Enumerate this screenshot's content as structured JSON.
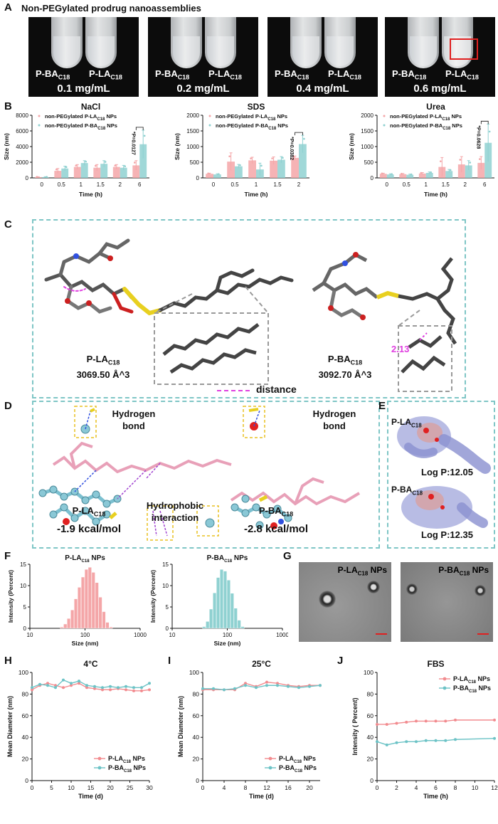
{
  "panels": {
    "A": {
      "letter": "A",
      "title": "Non-PEGylated prodrug nanoassemblies",
      "photos": [
        {
          "left_label": "P-BA",
          "right_label": "P-LA",
          "sub": "C18",
          "conc": "0.1 mg/mL"
        },
        {
          "left_label": "P-BA",
          "right_label": "P-LA",
          "sub": "C18",
          "conc": "0.2 mg/mL"
        },
        {
          "left_label": "P-BA",
          "right_label": "P-LA",
          "sub": "C18",
          "conc": "0.4 mg/mL"
        },
        {
          "left_label": "P-BA",
          "right_label": "P-LA",
          "sub": "C18",
          "conc": "0.6 mg/mL"
        }
      ]
    },
    "B": {
      "letter": "B"
    },
    "C": {
      "letter": "C",
      "left_name": "P-LA",
      "left_vol": "3069.50 Å^3",
      "right_name": "P-BA",
      "right_vol": "3092.70 Å^3",
      "sub": "C18",
      "distance_value": "2.13",
      "legend": "distance"
    },
    "D": {
      "letter": "D",
      "hbond_left": "Hydrogen bond",
      "hbond_right": "Hydrogen bond",
      "hydrophobic": "Hydrophobic interaction",
      "left_name": "P-LA",
      "right_name": "P-BA",
      "sub": "C18",
      "left_energy": "-1.9 kcal/mol",
      "right_energy": "-2.8 kcal/mol"
    },
    "E": {
      "letter": "E",
      "top_name": "P-LA",
      "bottom_name": "P-BA",
      "sub": "C18",
      "top_logp": "Log P:12.05",
      "bottom_logp": "Log P:12.35"
    },
    "F": {
      "letter": "F"
    },
    "G": {
      "letter": "G",
      "left_label": "P-LA",
      "right_label": "P-BA",
      "sub": "C18",
      "suffix": " NPs"
    },
    "H": {
      "letter": "H"
    },
    "I": {
      "letter": "I"
    },
    "J": {
      "letter": "J"
    }
  },
  "colors": {
    "pink": "#f4a6a8",
    "pink_line": "#f28b8f",
    "teal": "#8fd1d1",
    "teal_line": "#6cc3c6",
    "dash": "#7fc6c6"
  },
  "chart_data": [
    {
      "id": "B-NaCl",
      "type": "bar",
      "title": "NaCl",
      "xlabel": "Time (h)",
      "ylabel": "Size (nm)",
      "categories": [
        "0",
        "0.5",
        "1",
        "1.5",
        "2",
        "6"
      ],
      "ylim": [
        0,
        8000
      ],
      "yticks": [
        0,
        2000,
        4000,
        6000,
        8000
      ],
      "series": [
        {
          "name": "non-PEGylated P-LA",
          "name_sub": "C18",
          "name_suffix": " NPs",
          "color": "#f4a6a8",
          "values": [
            100,
            900,
            1400,
            1300,
            1400,
            1600
          ],
          "err": [
            50,
            300,
            300,
            400,
            300,
            600
          ]
        },
        {
          "name": "non-PEGylated P-BA",
          "name_sub": "C18",
          "name_suffix": " NPs",
          "color": "#8fd1d1",
          "values": [
            100,
            1200,
            1900,
            1800,
            1300,
            4300
          ],
          "err": [
            50,
            300,
            300,
            400,
            300,
            1800
          ]
        }
      ],
      "annotation": "*P=0.0127"
    },
    {
      "id": "B-SDS",
      "type": "bar",
      "title": "SDS",
      "xlabel": "Time (h)",
      "ylabel": "Size (nm)",
      "categories": [
        "0",
        "0.5",
        "1",
        "1.5",
        "2"
      ],
      "ylim": [
        0,
        2000
      ],
      "yticks": [
        0,
        500,
        1000,
        1500,
        2000
      ],
      "series": [
        {
          "name": "non-PEGylated P-LA",
          "name_sub": "C18",
          "name_suffix": " NPs",
          "color": "#f4a6a8",
          "values": [
            130,
            520,
            560,
            550,
            640
          ],
          "err": [
            20,
            280,
            100,
            120,
            60
          ]
        },
        {
          "name": "non-PEGylated P-BA",
          "name_sub": "C18",
          "name_suffix": " NPs",
          "color": "#8fd1d1",
          "values": [
            110,
            370,
            270,
            580,
            1080
          ],
          "err": [
            20,
            60,
            200,
            100,
            280
          ]
        }
      ],
      "annotation": "*P=0.0382"
    },
    {
      "id": "B-Urea",
      "type": "bar",
      "title": "Urea",
      "xlabel": "Time (h)",
      "ylabel": "Size (nm)",
      "categories": [
        "0",
        "0.5",
        "1",
        "1.5",
        "2",
        "6"
      ],
      "ylim": [
        0,
        2000
      ],
      "yticks": [
        0,
        500,
        1000,
        1500,
        2000
      ],
      "series": [
        {
          "name": "non-PEGylated P-LA",
          "name_sub": "C18",
          "name_suffix": " NPs",
          "color": "#f4a6a8",
          "values": [
            130,
            120,
            140,
            350,
            430,
            480
          ],
          "err": [
            20,
            20,
            30,
            300,
            250,
            200
          ]
        },
        {
          "name": "non-PEGylated P-BA",
          "name_sub": "C18",
          "name_suffix": " NPs",
          "color": "#8fd1d1",
          "values": [
            110,
            100,
            160,
            220,
            400,
            1120
          ],
          "err": [
            20,
            20,
            30,
            50,
            150,
            600
          ]
        }
      ],
      "annotation": "*P=0.0628"
    },
    {
      "id": "F-LA",
      "type": "bar",
      "title": "P-LA",
      "title_sub": "C18",
      "title_suffix": " NPs",
      "xlabel": "Size (nm)",
      "ylabel": "Intensity (Percent)",
      "xlog": true,
      "xlim": [
        10,
        1000
      ],
      "xticks": [
        10,
        100,
        1000
      ],
      "ylim": [
        0,
        15
      ],
      "yticks": [
        0,
        5,
        10,
        15
      ],
      "color": "#f4a6a8",
      "x": [
        37.8,
        43.8,
        50.7,
        58.8,
        68.1,
        78.8,
        91.3,
        105.7,
        122.4,
        141.8,
        164.2,
        190.1,
        220.2,
        255.0,
        295.3
      ],
      "values": [
        0.3,
        1.0,
        2.3,
        4.3,
        6.9,
        9.6,
        12.0,
        13.8,
        14.3,
        13.1,
        10.7,
        7.3,
        3.9,
        1.4,
        0.3
      ]
    },
    {
      "id": "F-BA",
      "type": "bar",
      "title": "P-BA",
      "title_sub": "C18",
      "title_suffix": " NPs",
      "xlabel": "Size (nm)",
      "ylabel": "Intensity (Percent)",
      "xlog": true,
      "xlim": [
        10,
        1000
      ],
      "xticks": [
        10,
        100,
        1000
      ],
      "ylim": [
        0,
        15
      ],
      "yticks": [
        0,
        5,
        10,
        15
      ],
      "color": "#8fd1d1",
      "x": [
        37.8,
        43.8,
        50.7,
        58.8,
        68.1,
        78.8,
        91.3,
        105.7,
        122.4,
        141.8,
        164.2,
        190.1
      ],
      "values": [
        0.4,
        1.6,
        4.5,
        8.3,
        11.9,
        13.8,
        13.4,
        11.3,
        8.2,
        4.7,
        1.9,
        0.4
      ]
    },
    {
      "id": "H",
      "type": "line",
      "title": "4°C",
      "xlabel": "Time (d)",
      "ylabel": "Mean Diameter (nm)",
      "xlim": [
        0,
        30
      ],
      "xticks": [
        0,
        5,
        10,
        15,
        20,
        25,
        30
      ],
      "ylim": [
        0,
        100
      ],
      "yticks": [
        0,
        20,
        40,
        60,
        80,
        100
      ],
      "legend_pos": "bottom-right",
      "x": [
        0,
        2,
        4,
        6,
        8,
        10,
        12,
        14,
        16,
        18,
        20,
        22,
        24,
        26,
        28,
        30
      ],
      "series": [
        {
          "name": "P-LA",
          "name_sub": "C18",
          "name_suffix": " NPs",
          "color": "#f28b8f",
          "values": [
            84,
            88,
            90,
            88,
            86,
            88,
            90,
            86,
            85,
            84,
            84,
            85,
            84,
            83,
            83,
            84
          ]
        },
        {
          "name": "P-BA",
          "name_sub": "C18",
          "name_suffix": " NPs",
          "color": "#6cc3c6",
          "values": [
            86,
            89,
            88,
            86,
            93,
            90,
            92,
            88,
            87,
            86,
            87,
            86,
            87,
            86,
            86,
            90
          ]
        }
      ]
    },
    {
      "id": "I",
      "type": "line",
      "title": "25°C",
      "xlabel": "Time (d)",
      "ylabel": "Mean Diameter (nm)",
      "xlim": [
        0,
        22
      ],
      "xticks": [
        0,
        4,
        8,
        12,
        16,
        20
      ],
      "ylim": [
        0,
        100
      ],
      "yticks": [
        0,
        20,
        40,
        60,
        80,
        100
      ],
      "legend_pos": "bottom-right",
      "x": [
        0,
        2,
        4,
        6,
        8,
        10,
        12,
        14,
        16,
        18,
        20,
        22
      ],
      "series": [
        {
          "name": "P-LA",
          "name_sub": "C18",
          "name_suffix": " NPs",
          "color": "#f28b8f",
          "values": [
            84,
            84,
            84,
            84,
            90,
            87,
            91,
            90,
            88,
            87,
            88,
            88
          ]
        },
        {
          "name": "P-BA",
          "name_sub": "C18",
          "name_suffix": " NPs",
          "color": "#6cc3c6",
          "values": [
            85,
            85,
            84,
            85,
            88,
            86,
            88,
            88,
            87,
            86,
            87,
            88
          ]
        }
      ]
    },
    {
      "id": "J",
      "type": "line",
      "title": "FBS",
      "xlabel": "Time (h)",
      "ylabel": "Intensity ( Percent)",
      "xlim": [
        0,
        12
      ],
      "xticks": [
        0,
        2,
        4,
        6,
        8,
        10,
        12
      ],
      "ylim": [
        0,
        100
      ],
      "yticks": [
        0,
        20,
        40,
        60,
        80,
        100
      ],
      "legend_pos": "top-right",
      "x": [
        0,
        1,
        2,
        3,
        4,
        5,
        6,
        7,
        8,
        12
      ],
      "series": [
        {
          "name": "P-LA",
          "name_sub": "C18",
          "name_suffix": " NPs",
          "color": "#f28b8f",
          "values": [
            52,
            52,
            53,
            54,
            55,
            55,
            55,
            55,
            56,
            56
          ]
        },
        {
          "name": "P-BA",
          "name_sub": "C18",
          "name_suffix": " NPs",
          "color": "#6cc3c6",
          "values": [
            36,
            33,
            35,
            36,
            36,
            37,
            37,
            37,
            38,
            39
          ]
        }
      ]
    }
  ]
}
